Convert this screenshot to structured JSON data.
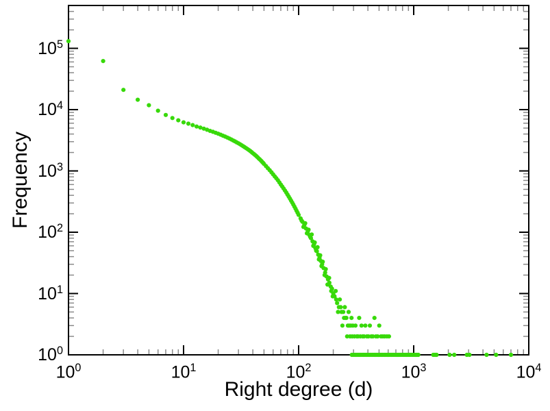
{
  "figure": {
    "background": "#ffffff",
    "frame_color": "#000000",
    "marker_color": "#38d90a",
    "major_tick_color": "#000000",
    "minor_tick_color": "#8a8a8a"
  },
  "chart_data": {
    "type": "scatter",
    "title": "",
    "xlabel": "Right degree (d)",
    "ylabel": "Frequency",
    "x_scale": "log",
    "y_scale": "log",
    "xlim": [
      1,
      10000
    ],
    "ylim": [
      1,
      500000
    ],
    "x_tick_exponents": [
      0,
      1,
      2,
      3,
      4
    ],
    "y_tick_exponents": [
      0,
      1,
      2,
      3,
      4,
      5
    ],
    "grid": false,
    "legend": null,
    "marker_radius": 3.1,
    "points": [
      [
        1,
        131000
      ],
      [
        2,
        62000
      ],
      [
        3,
        21000
      ],
      [
        4,
        14500
      ],
      [
        5,
        11800
      ],
      [
        6,
        9600
      ],
      [
        7,
        8200
      ],
      [
        8,
        7300
      ],
      [
        9,
        6700
      ],
      [
        10,
        6200
      ],
      [
        11,
        5900
      ],
      [
        12,
        5600
      ],
      [
        13,
        5300
      ],
      [
        14,
        5100
      ],
      [
        15,
        4900
      ],
      [
        16,
        4700
      ],
      [
        17,
        4500
      ],
      [
        18,
        4350
      ],
      [
        19,
        4200
      ],
      [
        20,
        4050
      ],
      [
        21,
        3900
      ],
      [
        22,
        3760
      ],
      [
        23,
        3630
      ],
      [
        24,
        3500
      ],
      [
        25,
        3380
      ],
      [
        26,
        3260
      ],
      [
        27,
        3140
      ],
      [
        28,
        3030
      ],
      [
        29,
        2920
      ],
      [
        30,
        2820
      ],
      [
        31,
        2720
      ],
      [
        32,
        2620
      ],
      [
        33,
        2530
      ],
      [
        34,
        2440
      ],
      [
        35,
        2350
      ],
      [
        36,
        2270
      ],
      [
        37,
        2190
      ],
      [
        38,
        2110
      ],
      [
        39,
        2030
      ],
      [
        40,
        1950
      ],
      [
        41,
        1880
      ],
      [
        42,
        1810
      ],
      [
        43,
        1740
      ],
      [
        44,
        1670
      ],
      [
        45,
        1600
      ],
      [
        46,
        1540
      ],
      [
        47,
        1480
      ],
      [
        48,
        1420
      ],
      [
        49,
        1360
      ],
      [
        50,
        1300
      ],
      [
        52,
        1200
      ],
      [
        54,
        1110
      ],
      [
        56,
        1030
      ],
      [
        58,
        950
      ],
      [
        60,
        880
      ],
      [
        62,
        815
      ],
      [
        64,
        760
      ],
      [
        66,
        705
      ],
      [
        68,
        650
      ],
      [
        70,
        600
      ],
      [
        72,
        558
      ],
      [
        74,
        518
      ],
      [
        76,
        480
      ],
      [
        78,
        445
      ],
      [
        80,
        412
      ],
      [
        82,
        382
      ],
      [
        84,
        354
      ],
      [
        86,
        328
      ],
      [
        88,
        304
      ],
      [
        90,
        282
      ],
      [
        92,
        261
      ],
      [
        94,
        242
      ],
      [
        96,
        224
      ],
      [
        98,
        208
      ],
      [
        100,
        192
      ],
      [
        104,
        168
      ],
      [
        108,
        148
      ],
      [
        112,
        131
      ],
      [
        116,
        115
      ],
      [
        120,
        102
      ],
      [
        124,
        90
      ],
      [
        128,
        80
      ],
      [
        132,
        71
      ],
      [
        136,
        63
      ],
      [
        140,
        55
      ],
      [
        144,
        49
      ],
      [
        148,
        43
      ],
      [
        152,
        38
      ],
      [
        156,
        34
      ],
      [
        160,
        30
      ],
      [
        165,
        26
      ],
      [
        170,
        22
      ],
      [
        175,
        19
      ],
      [
        180,
        17
      ],
      [
        185,
        15
      ],
      [
        190,
        13
      ],
      [
        195,
        12
      ],
      [
        200,
        10
      ],
      [
        106,
        155
      ],
      [
        110,
        122
      ],
      [
        114,
        140
      ],
      [
        118,
        96
      ],
      [
        122,
        110
      ],
      [
        126,
        84
      ],
      [
        130,
        92
      ],
      [
        134,
        60
      ],
      [
        138,
        68
      ],
      [
        142,
        50
      ],
      [
        146,
        57
      ],
      [
        150,
        36
      ],
      [
        154,
        42
      ],
      [
        158,
        28
      ],
      [
        162,
        33
      ],
      [
        168,
        20
      ],
      [
        172,
        25
      ],
      [
        178,
        14
      ],
      [
        184,
        18
      ],
      [
        192,
        11
      ],
      [
        198,
        9
      ],
      [
        205,
        9
      ],
      [
        210,
        11
      ],
      [
        212,
        8
      ],
      [
        216,
        7
      ],
      [
        220,
        5
      ],
      [
        224,
        6
      ],
      [
        228,
        8
      ],
      [
        232,
        6
      ],
      [
        236,
        5
      ],
      [
        240,
        3
      ],
      [
        244,
        5
      ],
      [
        248,
        4
      ],
      [
        252,
        6
      ],
      [
        256,
        4
      ],
      [
        260,
        4
      ],
      [
        264,
        2
      ],
      [
        268,
        3
      ],
      [
        272,
        5
      ],
      [
        276,
        3
      ],
      [
        280,
        2
      ],
      [
        284,
        3
      ],
      [
        288,
        4
      ],
      [
        292,
        2
      ],
      [
        296,
        3
      ],
      [
        305,
        2
      ],
      [
        312,
        3
      ],
      [
        320,
        2
      ],
      [
        328,
        2
      ],
      [
        336,
        4
      ],
      [
        344,
        2
      ],
      [
        352,
        3
      ],
      [
        360,
        2
      ],
      [
        370,
        2
      ],
      [
        380,
        3
      ],
      [
        392,
        2
      ],
      [
        404,
        2
      ],
      [
        416,
        3
      ],
      [
        428,
        2
      ],
      [
        442,
        2
      ],
      [
        456,
        4
      ],
      [
        470,
        2
      ],
      [
        486,
        2
      ],
      [
        502,
        3
      ],
      [
        520,
        2
      ],
      [
        540,
        2
      ],
      [
        560,
        2
      ],
      [
        585,
        2
      ],
      [
        610,
        2
      ],
      [
        290,
        1
      ],
      [
        299,
        1
      ],
      [
        308,
        1
      ],
      [
        317,
        1
      ],
      [
        327,
        1
      ],
      [
        336,
        1
      ],
      [
        346,
        1
      ],
      [
        357,
        1
      ],
      [
        367,
        1
      ],
      [
        378,
        1
      ],
      [
        390,
        1
      ],
      [
        401,
        1
      ],
      [
        413,
        1
      ],
      [
        426,
        1
      ],
      [
        439,
        1
      ],
      [
        452,
        1
      ],
      [
        465,
        1
      ],
      [
        479,
        1
      ],
      [
        494,
        1
      ],
      [
        508,
        1
      ],
      [
        524,
        1
      ],
      [
        539,
        1
      ],
      [
        556,
        1
      ],
      [
        572,
        1
      ],
      [
        589,
        1
      ],
      [
        607,
        1
      ],
      [
        625,
        1
      ],
      [
        644,
        1
      ],
      [
        663,
        1
      ],
      [
        683,
        1
      ],
      [
        704,
        1
      ],
      [
        725,
        1
      ],
      [
        746,
        1
      ],
      [
        769,
        1
      ],
      [
        792,
        1
      ],
      [
        816,
        1
      ],
      [
        840,
        1
      ],
      [
        865,
        1
      ],
      [
        891,
        1
      ],
      [
        918,
        1
      ],
      [
        945,
        1
      ],
      [
        974,
        1
      ],
      [
        1003,
        1
      ],
      [
        1033,
        1
      ],
      [
        1064,
        1
      ],
      [
        1096,
        1
      ],
      [
        1480,
        1
      ],
      [
        1530,
        1
      ],
      [
        1580,
        1
      ],
      [
        2050,
        1
      ],
      [
        2250,
        1
      ],
      [
        2900,
        1
      ],
      [
        3050,
        1
      ],
      [
        4300,
        1
      ],
      [
        5200,
        1
      ],
      [
        7000,
        1
      ]
    ]
  }
}
